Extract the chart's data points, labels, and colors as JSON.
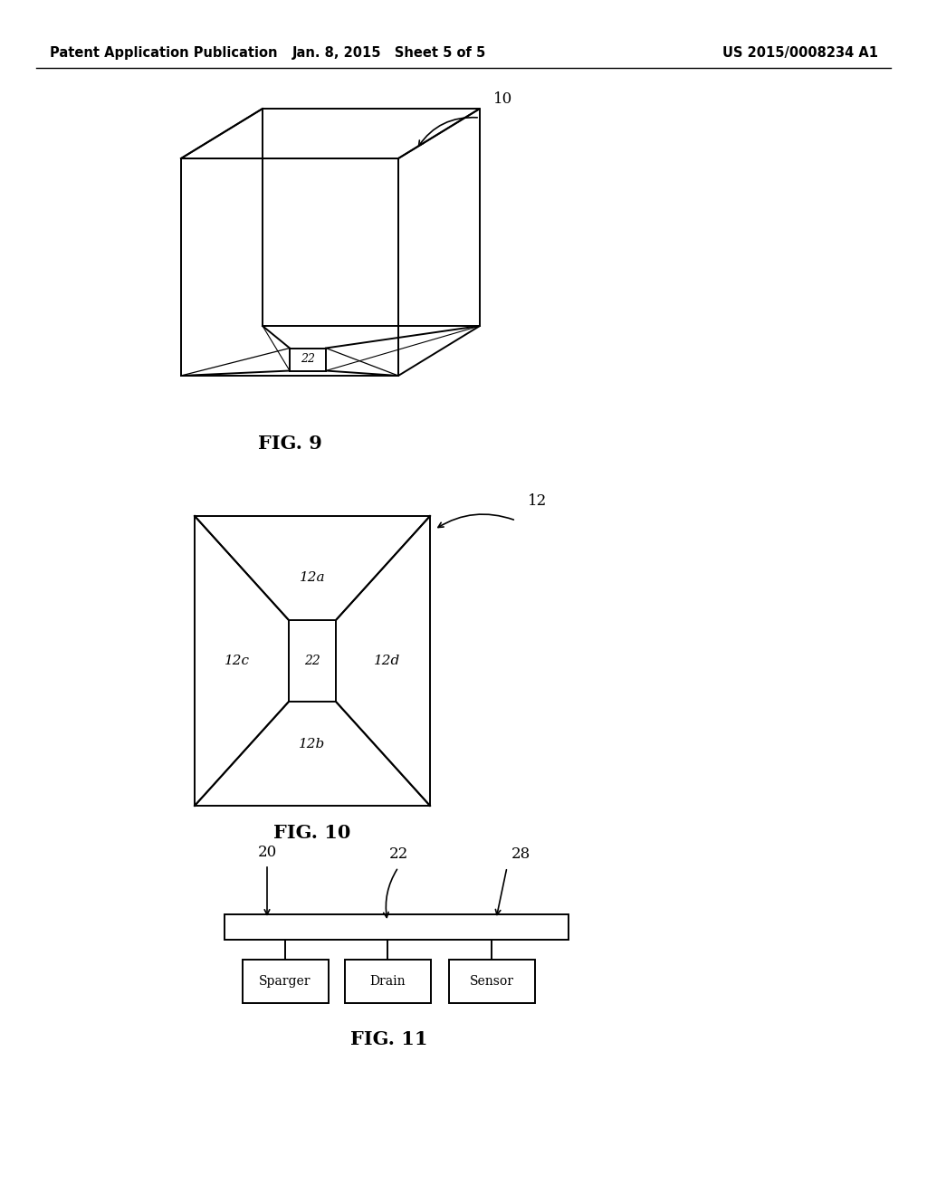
{
  "background_color": "#ffffff",
  "header": {
    "left": "Patent Application Publication",
    "center": "Jan. 8, 2015   Sheet 5 of 5",
    "right": "US 2015/0008234 A1",
    "fontsize": 10.5
  },
  "fig9": {
    "label": "FIG. 9",
    "ref_num": "10"
  },
  "fig10": {
    "label": "FIG. 10",
    "ref_num": "12"
  },
  "fig11": {
    "label": "FIG. 11",
    "ref_20": "20",
    "ref_22": "22",
    "ref_28": "28",
    "box_labels": [
      "Sparger",
      "Drain",
      "Sensor"
    ]
  }
}
